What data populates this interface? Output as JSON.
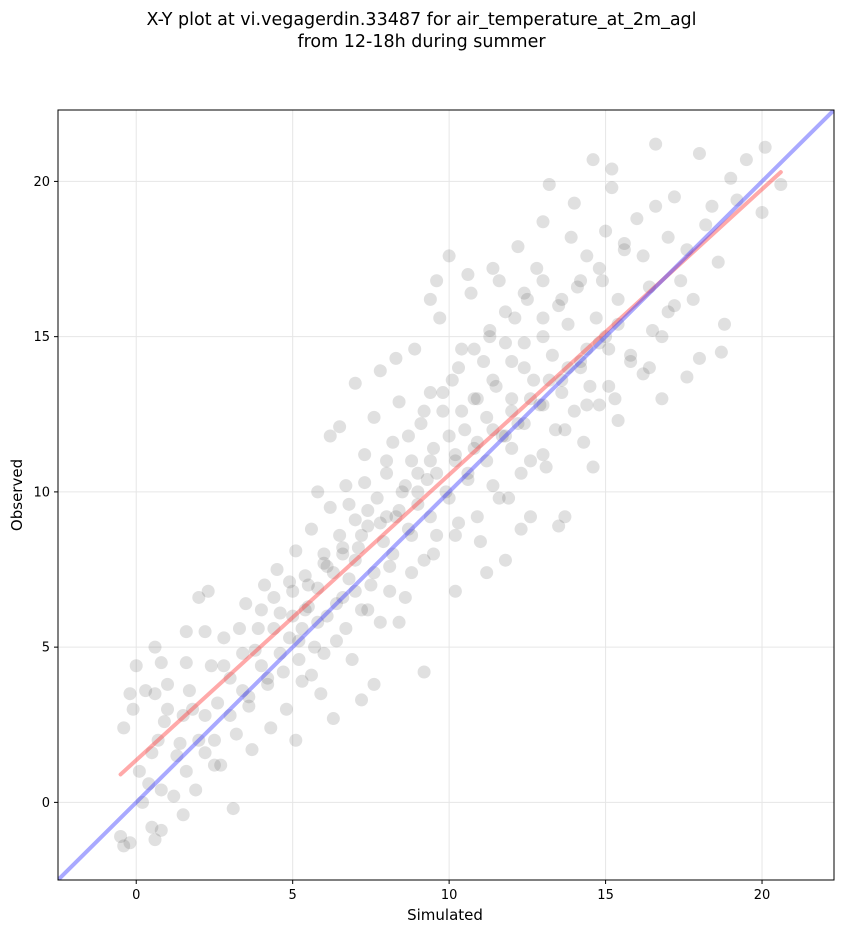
{
  "chart_data": {
    "type": "scatter",
    "title": "X-Y plot at vi.vegagerdin.33487 for air_temperature_at_2m_agl",
    "subtitle": "from 12-18h during summer",
    "xlabel": "Simulated",
    "ylabel": "Observed",
    "xlim": [
      -2.5,
      22.3
    ],
    "ylim": [
      -2.5,
      22.3
    ],
    "xticks": [
      0,
      5,
      10,
      15,
      20
    ],
    "yticks": [
      0,
      5,
      10,
      15,
      20
    ],
    "grid": true,
    "point_color": "#555555",
    "points": [
      [
        -0.5,
        -1.1
      ],
      [
        -0.4,
        -1.4
      ],
      [
        -0.2,
        -1.3
      ],
      [
        -0.4,
        2.4
      ],
      [
        -0.2,
        3.5
      ],
      [
        0.0,
        4.4
      ],
      [
        0.3,
        3.6
      ],
      [
        -0.1,
        3.0
      ],
      [
        0.5,
        1.6
      ],
      [
        0.1,
        1.0
      ],
      [
        0.7,
        2.0
      ],
      [
        0.4,
        0.6
      ],
      [
        0.6,
        -1.2
      ],
      [
        0.8,
        -0.9
      ],
      [
        0.5,
        -0.8
      ],
      [
        0.6,
        3.5
      ],
      [
        0.8,
        4.5
      ],
      [
        0.6,
        5.0
      ],
      [
        0.9,
        2.6
      ],
      [
        1.0,
        3.8
      ],
      [
        1.2,
        0.2
      ],
      [
        1.3,
        1.5
      ],
      [
        1.5,
        2.8
      ],
      [
        1.6,
        4.5
      ],
      [
        1.6,
        5.5
      ],
      [
        1.8,
        3.0
      ],
      [
        1.5,
        -0.4
      ],
      [
        1.9,
        0.4
      ],
      [
        2.0,
        2.0
      ],
      [
        2.0,
        6.6
      ],
      [
        2.2,
        5.5
      ],
      [
        2.3,
        6.8
      ],
      [
        2.4,
        4.4
      ],
      [
        2.5,
        2.0
      ],
      [
        2.6,
        3.2
      ],
      [
        2.7,
        1.2
      ],
      [
        2.8,
        5.3
      ],
      [
        3.0,
        4.0
      ],
      [
        3.1,
        -0.2
      ],
      [
        3.2,
        2.2
      ],
      [
        3.3,
        5.6
      ],
      [
        3.5,
        6.4
      ],
      [
        3.6,
        3.1
      ],
      [
        3.7,
        1.7
      ],
      [
        3.8,
        4.9
      ],
      [
        4.0,
        6.2
      ],
      [
        4.1,
        7.0
      ],
      [
        4.2,
        3.8
      ],
      [
        4.3,
        2.4
      ],
      [
        4.4,
        5.6
      ],
      [
        4.5,
        7.5
      ],
      [
        4.6,
        6.1
      ],
      [
        4.7,
        4.2
      ],
      [
        4.8,
        3.0
      ],
      [
        4.9,
        5.3
      ],
      [
        5.0,
        6.8
      ],
      [
        5.1,
        8.1
      ],
      [
        5.1,
        2.0
      ],
      [
        5.2,
        4.6
      ],
      [
        5.3,
        5.6
      ],
      [
        5.4,
        7.3
      ],
      [
        5.5,
        6.3
      ],
      [
        5.6,
        8.8
      ],
      [
        5.7,
        5.0
      ],
      [
        5.8,
        6.9
      ],
      [
        5.9,
        3.5
      ],
      [
        6.0,
        8.0
      ],
      [
        6.1,
        6.0
      ],
      [
        6.2,
        9.5
      ],
      [
        6.3,
        7.4
      ],
      [
        6.4,
        5.2
      ],
      [
        6.5,
        8.6
      ],
      [
        6.6,
        6.6
      ],
      [
        6.7,
        10.2
      ],
      [
        6.8,
        7.2
      ],
      [
        6.9,
        4.6
      ],
      [
        7.0,
        9.1
      ],
      [
        7.1,
        8.2
      ],
      [
        7.2,
        6.2
      ],
      [
        7.3,
        11.2
      ],
      [
        7.4,
        8.9
      ],
      [
        7.5,
        7.0
      ],
      [
        7.6,
        12.4
      ],
      [
        7.7,
        9.8
      ],
      [
        7.8,
        5.8
      ],
      [
        7.9,
        8.4
      ],
      [
        8.0,
        10.6
      ],
      [
        8.1,
        7.6
      ],
      [
        8.2,
        11.6
      ],
      [
        8.3,
        9.2
      ],
      [
        8.4,
        12.9
      ],
      [
        8.5,
        10.0
      ],
      [
        8.6,
        6.6
      ],
      [
        8.7,
        8.8
      ],
      [
        8.8,
        11.0
      ],
      [
        8.9,
        14.6
      ],
      [
        9.0,
        9.6
      ],
      [
        9.1,
        12.2
      ],
      [
        9.2,
        7.8
      ],
      [
        9.3,
        10.4
      ],
      [
        9.4,
        13.2
      ],
      [
        9.5,
        11.4
      ],
      [
        9.6,
        8.6
      ],
      [
        9.7,
        15.6
      ],
      [
        9.8,
        12.6
      ],
      [
        9.9,
        10.0
      ],
      [
        10.0,
        17.6
      ],
      [
        10.1,
        13.6
      ],
      [
        10.2,
        11.2
      ],
      [
        10.3,
        9.0
      ],
      [
        10.4,
        14.6
      ],
      [
        10.5,
        12.0
      ],
      [
        10.6,
        10.6
      ],
      [
        10.7,
        16.4
      ],
      [
        10.8,
        13.0
      ],
      [
        10.9,
        11.6
      ],
      [
        11.0,
        8.4
      ],
      [
        11.1,
        14.2
      ],
      [
        11.2,
        12.4
      ],
      [
        11.3,
        15.2
      ],
      [
        11.4,
        10.2
      ],
      [
        11.5,
        13.4
      ],
      [
        11.6,
        16.8
      ],
      [
        11.7,
        11.8
      ],
      [
        11.8,
        14.8
      ],
      [
        11.9,
        9.8
      ],
      [
        12.0,
        13.0
      ],
      [
        12.1,
        15.6
      ],
      [
        12.2,
        12.2
      ],
      [
        12.3,
        8.8
      ],
      [
        12.4,
        14.0
      ],
      [
        12.5,
        16.2
      ],
      [
        12.6,
        11.0
      ],
      [
        12.7,
        13.6
      ],
      [
        12.8,
        17.2
      ],
      [
        12.9,
        12.8
      ],
      [
        13.0,
        15.0
      ],
      [
        13.1,
        10.8
      ],
      [
        13.2,
        19.9
      ],
      [
        13.3,
        14.4
      ],
      [
        13.4,
        12.0
      ],
      [
        13.5,
        16.0
      ],
      [
        13.6,
        13.2
      ],
      [
        13.7,
        9.2
      ],
      [
        13.8,
        15.4
      ],
      [
        13.9,
        18.2
      ],
      [
        14.0,
        12.6
      ],
      [
        14.1,
        16.6
      ],
      [
        14.2,
        14.0
      ],
      [
        14.3,
        11.6
      ],
      [
        14.4,
        17.6
      ],
      [
        14.5,
        13.4
      ],
      [
        14.6,
        20.7
      ],
      [
        14.7,
        15.6
      ],
      [
        14.8,
        12.8
      ],
      [
        14.9,
        16.8
      ],
      [
        15.0,
        18.4
      ],
      [
        15.1,
        14.6
      ],
      [
        15.2,
        19.8
      ],
      [
        15.3,
        13.0
      ],
      [
        15.4,
        16.2
      ],
      [
        15.6,
        17.8
      ],
      [
        15.8,
        14.4
      ],
      [
        16.0,
        18.8
      ],
      [
        16.2,
        13.8
      ],
      [
        16.4,
        16.6
      ],
      [
        16.6,
        19.2
      ],
      [
        16.8,
        15.0
      ],
      [
        17.0,
        18.2
      ],
      [
        17.2,
        19.5
      ],
      [
        17.4,
        16.8
      ],
      [
        17.6,
        17.8
      ],
      [
        17.8,
        16.2
      ],
      [
        18.0,
        20.9
      ],
      [
        18.2,
        18.6
      ],
      [
        18.4,
        19.2
      ],
      [
        18.6,
        17.4
      ],
      [
        18.8,
        15.4
      ],
      [
        19.0,
        20.1
      ],
      [
        19.2,
        19.4
      ],
      [
        19.5,
        20.7
      ],
      [
        20.0,
        19.0
      ],
      [
        20.1,
        21.1
      ],
      [
        20.6,
        19.9
      ],
      [
        2.5,
        1.2
      ],
      [
        3.4,
        3.6
      ],
      [
        4.0,
        4.4
      ],
      [
        5.6,
        4.1
      ],
      [
        6.3,
        2.7
      ],
      [
        7.2,
        3.3
      ],
      [
        7.6,
        3.8
      ],
      [
        8.4,
        5.8
      ],
      [
        9.2,
        4.2
      ],
      [
        10.2,
        6.8
      ],
      [
        11.2,
        7.4
      ],
      [
        11.8,
        7.8
      ],
      [
        5.8,
        10.0
      ],
      [
        6.2,
        11.8
      ],
      [
        6.5,
        12.1
      ],
      [
        7.0,
        13.5
      ],
      [
        7.8,
        13.9
      ],
      [
        8.3,
        14.3
      ],
      [
        9.4,
        16.2
      ],
      [
        9.6,
        16.8
      ],
      [
        10.6,
        17.0
      ],
      [
        11.4,
        17.2
      ],
      [
        12.2,
        17.9
      ],
      [
        13.0,
        18.7
      ],
      [
        14.0,
        19.3
      ],
      [
        15.2,
        20.4
      ],
      [
        16.6,
        21.2
      ],
      [
        18.7,
        14.5
      ],
      [
        16.8,
        13.0
      ],
      [
        15.4,
        12.3
      ],
      [
        14.6,
        10.8
      ],
      [
        13.5,
        8.9
      ],
      [
        12.6,
        9.2
      ],
      [
        12.0,
        11.4
      ],
      [
        17.6,
        13.7
      ],
      [
        18.0,
        14.3
      ],
      [
        16.4,
        14.0
      ],
      [
        17.0,
        15.8
      ],
      [
        1.0,
        3.0
      ],
      [
        1.4,
        1.9
      ],
      [
        1.7,
        3.6
      ],
      [
        2.2,
        2.8
      ],
      [
        2.8,
        4.4
      ],
      [
        3.4,
        4.8
      ],
      [
        3.9,
        5.6
      ],
      [
        4.4,
        6.6
      ],
      [
        4.9,
        7.1
      ],
      [
        5.4,
        6.2
      ],
      [
        6.0,
        7.7
      ],
      [
        6.6,
        8.2
      ],
      [
        7.0,
        7.8
      ],
      [
        7.4,
        9.4
      ],
      [
        8.0,
        9.2
      ],
      [
        8.6,
        10.2
      ],
      [
        9.0,
        10.6
      ],
      [
        9.4,
        11.0
      ],
      [
        10.0,
        11.8
      ],
      [
        10.4,
        12.6
      ],
      [
        10.9,
        13.0
      ],
      [
        11.4,
        13.6
      ],
      [
        12.0,
        14.2
      ],
      [
        12.4,
        14.8
      ],
      [
        13.0,
        15.6
      ],
      [
        13.6,
        16.2
      ],
      [
        14.2,
        16.8
      ],
      [
        14.8,
        17.2
      ],
      [
        15.6,
        18.0
      ],
      [
        16.2,
        17.6
      ],
      [
        4.6,
        4.8
      ],
      [
        5.2,
        5.2
      ],
      [
        5.8,
        5.8
      ],
      [
        6.4,
        6.4
      ],
      [
        7.0,
        6.8
      ],
      [
        7.6,
        7.4
      ],
      [
        8.2,
        8.0
      ],
      [
        8.8,
        8.6
      ],
      [
        9.4,
        9.2
      ],
      [
        10.0,
        9.8
      ],
      [
        10.6,
        10.4
      ],
      [
        11.2,
        11.0
      ],
      [
        11.8,
        11.8
      ],
      [
        12.4,
        12.2
      ],
      [
        13.0,
        12.8
      ],
      [
        13.6,
        13.6
      ],
      [
        14.2,
        14.2
      ],
      [
        14.8,
        14.8
      ],
      [
        15.4,
        15.4
      ],
      [
        3.0,
        2.8
      ],
      [
        3.6,
        3.4
      ],
      [
        4.2,
        4.0
      ],
      [
        2.2,
        1.6
      ],
      [
        1.6,
        1.0
      ],
      [
        0.8,
        0.4
      ],
      [
        0.2,
        0.0
      ],
      [
        6.8,
        9.6
      ],
      [
        7.3,
        10.3
      ],
      [
        8.0,
        11.0
      ],
      [
        8.7,
        11.8
      ],
      [
        9.2,
        12.6
      ],
      [
        9.8,
        13.2
      ],
      [
        10.3,
        14.0
      ],
      [
        10.8,
        14.6
      ],
      [
        11.3,
        15.0
      ],
      [
        11.8,
        15.8
      ],
      [
        12.4,
        16.4
      ],
      [
        13.0,
        16.8
      ],
      [
        5.0,
        6.0
      ],
      [
        5.5,
        7.0
      ],
      [
        6.1,
        7.6
      ],
      [
        6.6,
        8.0
      ],
      [
        7.2,
        8.6
      ],
      [
        7.8,
        9.0
      ],
      [
        8.4,
        9.4
      ],
      [
        9.0,
        10.0
      ],
      [
        9.6,
        10.6
      ],
      [
        10.2,
        11.0
      ],
      [
        10.8,
        11.4
      ],
      [
        11.4,
        12.0
      ],
      [
        12.0,
        12.6
      ],
      [
        12.6,
        13.0
      ],
      [
        13.2,
        13.6
      ],
      [
        13.8,
        14.0
      ],
      [
        14.4,
        14.6
      ],
      [
        15.0,
        15.0
      ],
      [
        5.3,
        3.9
      ],
      [
        6.0,
        4.8
      ],
      [
        6.7,
        5.6
      ],
      [
        7.4,
        6.2
      ],
      [
        8.1,
        6.8
      ],
      [
        8.8,
        7.4
      ],
      [
        9.5,
        8.0
      ],
      [
        10.2,
        8.6
      ],
      [
        10.9,
        9.2
      ],
      [
        11.6,
        9.8
      ],
      [
        12.3,
        10.6
      ],
      [
        13.0,
        11.2
      ],
      [
        13.7,
        12.0
      ],
      [
        14.4,
        12.8
      ],
      [
        15.1,
        13.4
      ],
      [
        15.8,
        14.2
      ],
      [
        16.5,
        15.2
      ],
      [
        17.2,
        16.0
      ]
    ],
    "series": [
      {
        "name": "",
        "type": "line",
        "color": "#ff4040",
        "x": [
          -0.5,
          20.6
        ],
        "y": [
          0.9,
          20.3
        ]
      },
      {
        "name": "",
        "type": "line",
        "color": "#4040ff",
        "x": [
          -2.5,
          22.3
        ],
        "y": [
          -2.5,
          22.3
        ]
      }
    ]
  }
}
